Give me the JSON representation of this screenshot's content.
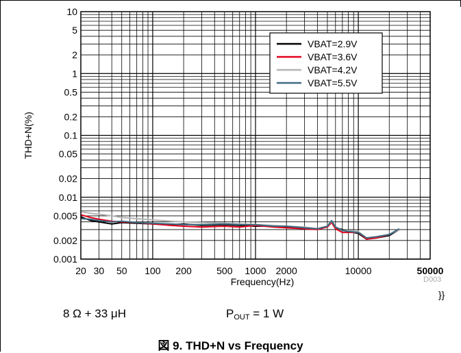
{
  "chart_data": {
    "type": "line",
    "xlabel": "Frequency(Hz)",
    "ylabel": "THD+N(%)",
    "x_scale": "log",
    "y_scale": "log",
    "xlim": [
      20,
      50000
    ],
    "ylim": [
      0.001,
      10
    ],
    "grid": true,
    "legend_position": "top-right",
    "x_ticks": [
      "20",
      "30",
      "50",
      "100",
      "200",
      "500",
      "1000",
      "2000",
      "10000",
      "50000"
    ],
    "y_ticks": [
      "0.001",
      "0.002",
      "0.005",
      "0.01",
      "0.02",
      "0.05",
      "0.1",
      "0.2",
      "0.5",
      "1",
      "2",
      "5",
      "10"
    ],
    "series": [
      {
        "name": "VBAT=2.9V",
        "color": "#000000",
        "x": [
          20,
          25,
          30,
          40,
          50,
          70,
          100,
          150,
          200,
          300,
          500,
          700,
          1000,
          1500,
          2000,
          3000,
          4000,
          5000,
          5500,
          6000,
          7000,
          8000,
          10000,
          12000,
          15000,
          20000,
          25000
        ],
        "y": [
          0.0048,
          0.0042,
          0.004,
          0.0037,
          0.0039,
          0.0038,
          0.0037,
          0.0036,
          0.0037,
          0.0035,
          0.0036,
          0.0035,
          0.0034,
          0.0034,
          0.0033,
          0.0032,
          0.0031,
          0.0033,
          0.004,
          0.0032,
          0.003,
          0.0028,
          0.0026,
          0.0021,
          0.0022,
          0.0024,
          0.003
        ]
      },
      {
        "name": "VBAT=3.6V",
        "color": "#e3001b",
        "x": [
          20,
          25,
          30,
          40,
          50,
          70,
          100,
          150,
          200,
          300,
          500,
          700,
          1000,
          1500,
          2000,
          3000,
          4000,
          5000,
          5500,
          6000,
          7000,
          8000,
          10000,
          12000,
          15000,
          20000,
          25000
        ],
        "y": [
          0.0052,
          0.0047,
          0.0044,
          0.0041,
          0.004,
          0.0039,
          0.0037,
          0.0035,
          0.0034,
          0.0033,
          0.0034,
          0.0033,
          0.0035,
          0.0033,
          0.0032,
          0.0031,
          0.003,
          0.0033,
          0.0039,
          0.0031,
          0.0027,
          0.0027,
          0.0027,
          0.0021,
          0.0022,
          0.0025,
          0.003
        ]
      },
      {
        "name": "VBAT=4.2V",
        "color": "#b4b4b4",
        "x": [
          20,
          25,
          30,
          40,
          50,
          70,
          100,
          150,
          200,
          300,
          500,
          700,
          1000,
          1500,
          2000,
          3000,
          4000,
          5000,
          5500,
          6000,
          7000,
          8000,
          10000,
          12000,
          15000,
          20000,
          25000
        ],
        "y": [
          0.0058,
          0.0055,
          0.0053,
          0.005,
          0.0047,
          0.0045,
          0.0043,
          0.0041,
          0.004,
          0.0039,
          0.0038,
          0.0037,
          0.0036,
          0.0035,
          0.0034,
          0.0033,
          0.0031,
          0.0034,
          0.0041,
          0.0033,
          0.0029,
          0.0029,
          0.0028,
          0.0022,
          0.0023,
          0.0025,
          0.003
        ]
      },
      {
        "name": "VBAT=5.5V",
        "color": "#3d6a80",
        "x": [
          20,
          25,
          30,
          40,
          50,
          70,
          100,
          150,
          200,
          300,
          500,
          700,
          1000,
          1500,
          2000,
          3000,
          4000,
          5000,
          5500,
          6000,
          7000,
          8000,
          10000,
          12000,
          15000,
          20000,
          25000
        ],
        "y": [
          0.0045,
          0.0044,
          0.0042,
          0.004,
          0.0041,
          0.0039,
          0.0038,
          0.0037,
          0.0036,
          0.0036,
          0.0037,
          0.0036,
          0.0036,
          0.0034,
          0.0034,
          0.0032,
          0.0031,
          0.0034,
          0.0042,
          0.0033,
          0.0029,
          0.0028,
          0.0027,
          0.0022,
          0.0023,
          0.0025,
          0.0031
        ]
      }
    ]
  },
  "figure_id": "D003",
  "brace_text": "}}",
  "conditions": {
    "load": "8 Ω + 33 μH",
    "pout_symbol": "P",
    "pout_subscript": "OUT",
    "pout_value": " = 1 W"
  },
  "caption": "図 9. THD+N vs Frequency"
}
